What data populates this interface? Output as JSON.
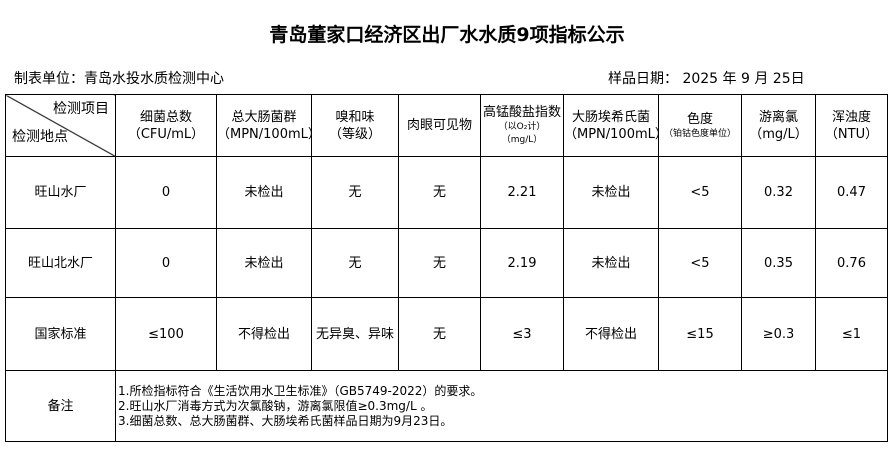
{
  "title": "青岛董家口经济区出厂水水质9项指标公示",
  "unit_label": "制表单位：青岛水投水质检测中心",
  "date_label": "样品日期：   2025 年 9 月 25日",
  "header": {
    "items_label": "检测项目",
    "sites_label": "检测地点"
  },
  "columns": [
    {
      "name": "细菌总数",
      "unit": "（CFU/mL）"
    },
    {
      "name": "总大肠菌群",
      "unit": "（MPN/100mL）"
    },
    {
      "name": "嗅和味",
      "unit": "（等级）"
    },
    {
      "name": "肉眼可见物",
      "unit": ""
    },
    {
      "name": "高锰酸盐指数",
      "unit": "（以O₂计）",
      "unit2": "（mg/L）"
    },
    {
      "name": "大肠埃希氏菌",
      "unit": "（MPN/100mL）"
    },
    {
      "name": "色度",
      "unit": "（铂钴色度单位）"
    },
    {
      "name": "游离氯",
      "unit": "（mg/L）"
    },
    {
      "name": "浑浊度",
      "unit": "（NTU）"
    }
  ],
  "rows": [
    {
      "site": "旺山水厂",
      "values": [
        "0",
        "未检出",
        "无",
        "无",
        "2.21",
        "未检出",
        "<5",
        "0.32",
        "0.47"
      ]
    },
    {
      "site": "旺山北水厂",
      "values": [
        "0",
        "未检出",
        "无",
        "无",
        "2.19",
        "未检出",
        "<5",
        "0.35",
        "0.76"
      ]
    },
    {
      "site": "国家标准",
      "values": [
        "≤100",
        "不得检出",
        "无异臭、异味",
        "无",
        "≤3",
        "不得检出",
        "≤15",
        "≥0.3",
        "≤1"
      ]
    }
  ],
  "notes": {
    "label": "备注",
    "lines": [
      "1.所检指标符合《生活饮用水卫生标准》（GB5749-2022）的要求。",
      "2.旺山水厂消毒方式为次氯酸钠，游离氯限值≥0.3mg/L 。",
      "3.细菌总数、总大肠菌群、大肠埃希氏菌样品日期为9月23日。"
    ]
  }
}
